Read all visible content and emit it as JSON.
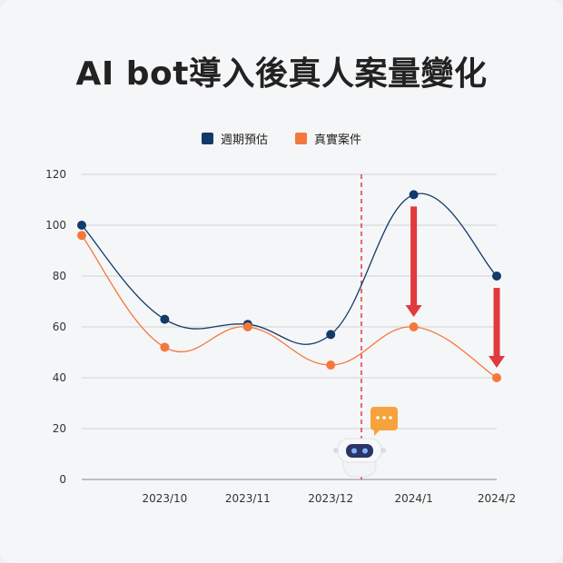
{
  "title": "AI bot導入後真人案量變化",
  "chart_data": {
    "type": "line",
    "categories": [
      "",
      "2023/10",
      "2023/11",
      "2023/12",
      "2024/1",
      "2024/2"
    ],
    "series": [
      {
        "name": "週期預估",
        "color": "#123a6b",
        "values": [
          100,
          63,
          61,
          57,
          112,
          80
        ]
      },
      {
        "name": "真實案件",
        "color": "#f4783c",
        "values": [
          96,
          52,
          60,
          45,
          60,
          40
        ]
      }
    ],
    "ylim": [
      0,
      120
    ],
    "yticks": [
      0,
      20,
      40,
      60,
      80,
      100,
      120
    ],
    "grid": true,
    "legend_position": "top-center",
    "divider_after": "2023/12",
    "divider_color": "#e0393e",
    "arrow_color": "#e0393e",
    "arrows_at": [
      "2024/1",
      "2024/2"
    ]
  }
}
